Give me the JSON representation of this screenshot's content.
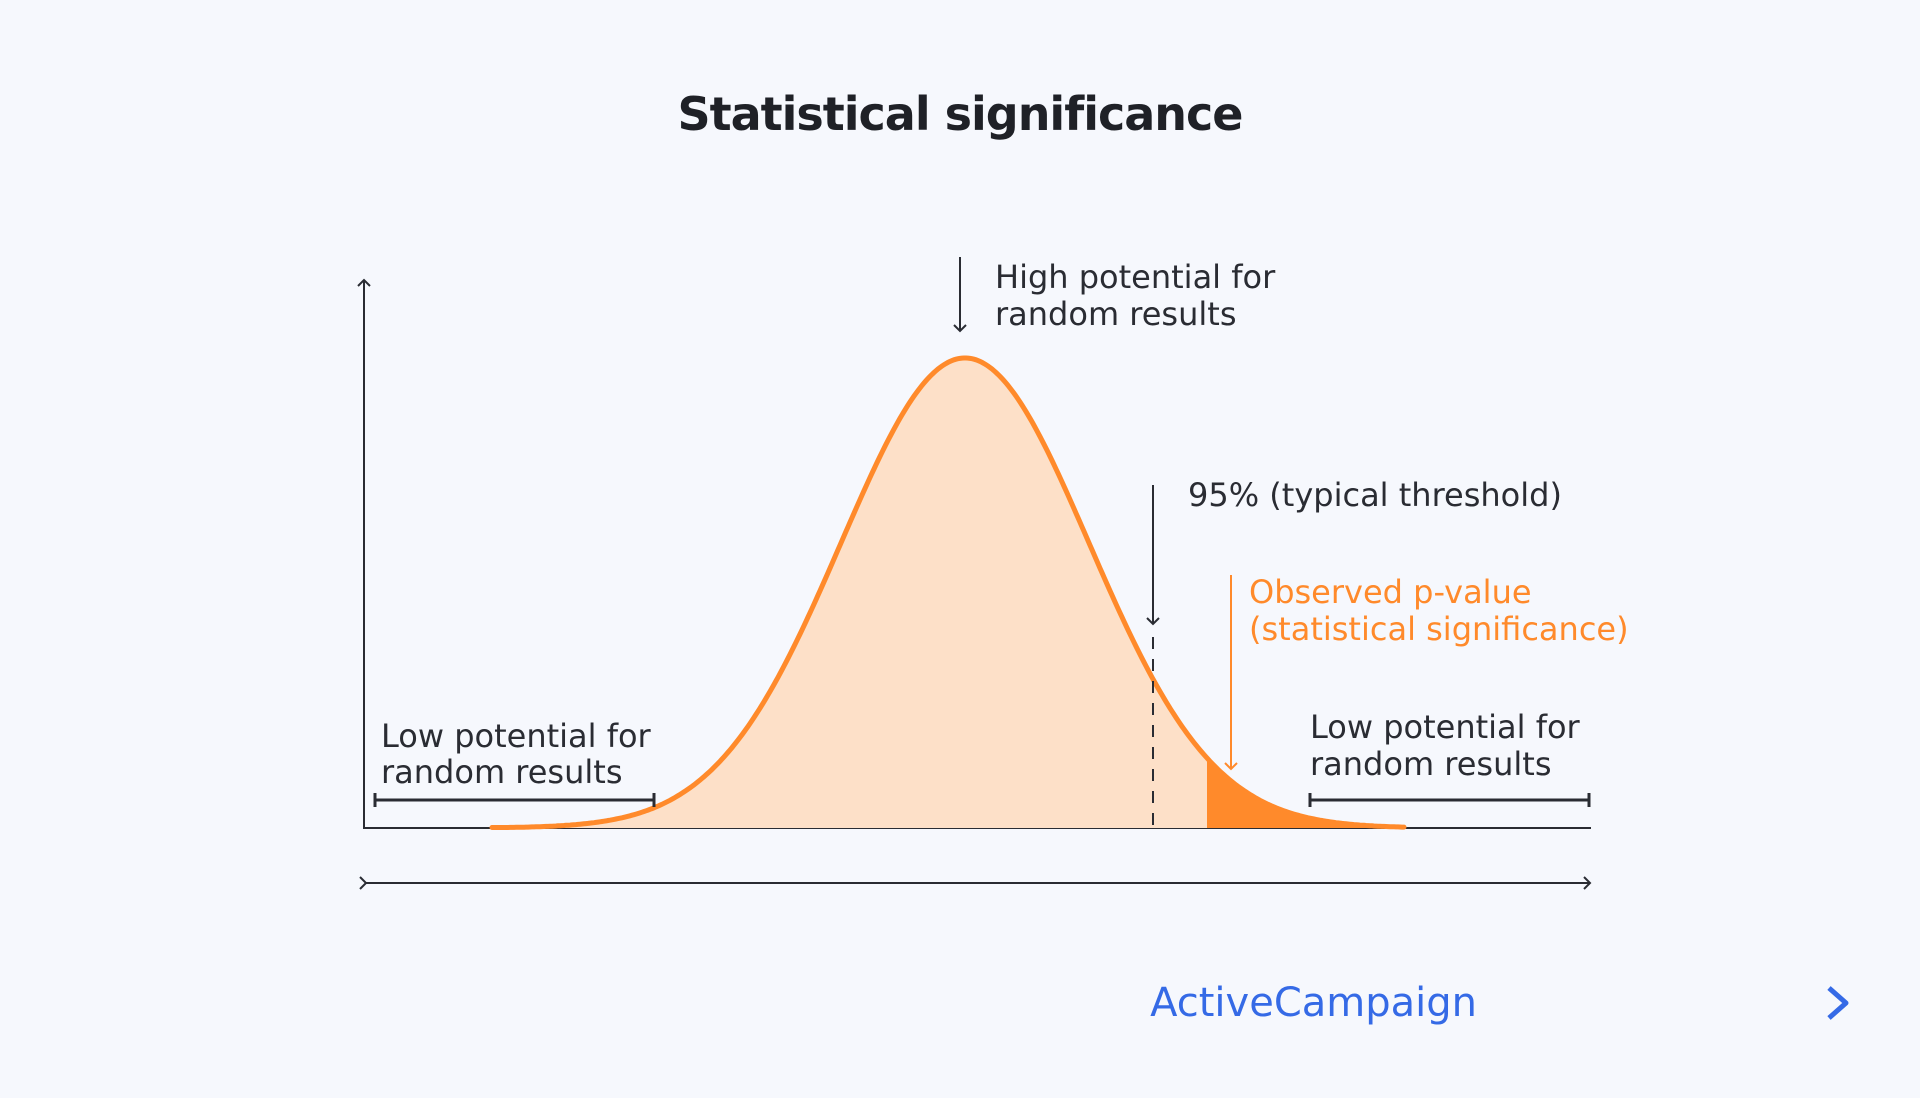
{
  "title": "Statistical significance",
  "chart_data": {
    "type": "area",
    "title": "Statistical significance",
    "distribution": "normal",
    "xlabel": "",
    "ylabel": "",
    "annotations": {
      "peak": [
        "High potential for",
        "random results"
      ],
      "threshold": "95% (typical threshold)",
      "observed": [
        "Observed p-value",
        "(statistical significance)"
      ],
      "left_tail": [
        "Low potential for",
        "random results"
      ],
      "right_tail": [
        "Low potential for",
        "random results"
      ]
    },
    "threshold_percent": 95
  },
  "colors": {
    "curve": "#ff8a2b",
    "fill": "#fde0c8",
    "observed_region": "#ff8a2b",
    "text": "#2a2c33",
    "logo": "#356ae6",
    "background": "#f6f8fd"
  },
  "logo": {
    "text": "ActiveCampaign",
    "icon": "chevron-right-icon"
  }
}
